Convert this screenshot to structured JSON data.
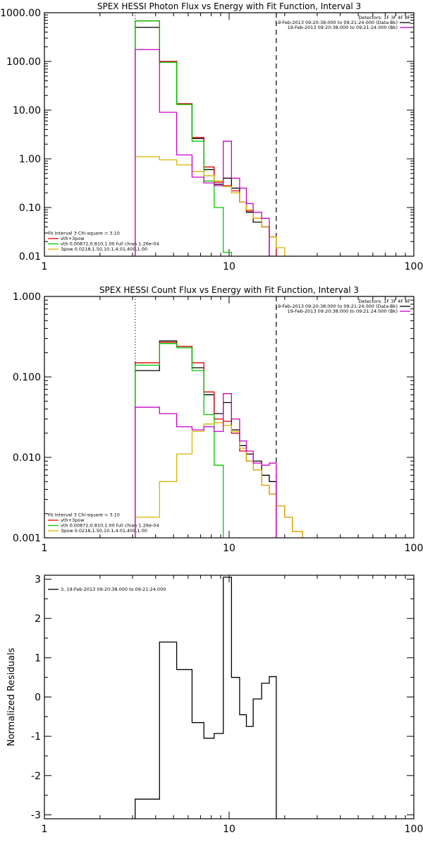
{
  "chart_data": [
    {
      "type": "line",
      "title": "SPEX HESSI Photon Flux vs Energy with Fit Function, Interval 3",
      "xlabel": "",
      "ylabel": "",
      "xscale": "log",
      "yscale": "log",
      "xlim": [
        1,
        100
      ],
      "ylim": [
        0.01,
        1000
      ],
      "x_ticks": [
        "1",
        "10",
        "100"
      ],
      "y_ticks": [
        "0.01",
        "0.10",
        "1.00",
        "10.00",
        "100.00",
        "1000.00"
      ],
      "legend_right": {
        "placement": "top-right",
        "lines": [
          {
            "text": "Detectors: 1F 3F 4F 8F",
            "color": null
          },
          {
            "text": "19-Feb-2013 09:20:38.000 to 09:21:24.000 (Data-Bk)",
            "color": "#000000"
          },
          {
            "text": "19-Feb-2013 09:20:38.000 to 09:21:24.000 (Bk)",
            "color": "#c800c8"
          }
        ]
      },
      "legend_left": {
        "placement": "bottom-left",
        "lines": [
          {
            "text": "Fit Interval  3    Chi-square = 3.10",
            "color": null
          },
          {
            "text": "vth+3pow",
            "color": "#e00000"
          },
          {
            "text": "vth 0.00872,0.810,1.00   full chian 1.26e-04",
            "color": "#00c800"
          },
          {
            "text": "3pow 0.0218,1.50,10.1,4.01,400,1.00",
            "color": "#d8b400"
          }
        ]
      },
      "vlines": [
        {
          "x": 3.1,
          "style": "dotted"
        },
        {
          "x": 18.0,
          "style": "dashed"
        }
      ],
      "x_edges": [
        3.1,
        4.2,
        5.2,
        6.3,
        7.3,
        8.3,
        9.3,
        10.3,
        11.4,
        12.4,
        13.5,
        15.0,
        16.5,
        18.0,
        20.0,
        22.0
      ],
      "series": [
        {
          "name": "Data-Bk",
          "color": "#000000",
          "values": [
            500,
            100,
            13.5,
            2.6,
            0.6,
            0.3,
            0.4,
            0.25,
            0.13,
            0.08,
            0.05,
            0.04
          ]
        },
        {
          "name": "vth+3pow",
          "color": "#e00000",
          "values": [
            680,
            100,
            13.5,
            2.75,
            0.68,
            0.33,
            0.28,
            0.22,
            0.13,
            0.085,
            0.06,
            0.04,
            0.025
          ]
        },
        {
          "name": "vth",
          "color": "#00c800",
          "values": [
            680,
            95,
            13.0,
            2.3,
            0.35,
            0.1,
            0.012,
            0.001
          ]
        },
        {
          "name": "3pow",
          "color": "#d8b400",
          "values": [
            1.1,
            0.95,
            0.75,
            0.55,
            0.45,
            0.35,
            0.27,
            0.2,
            0.13,
            0.09,
            0.06,
            0.04,
            0.025,
            0.015,
            0.01
          ]
        },
        {
          "name": "Bk",
          "color": "#c800c8",
          "values": [
            175,
            9,
            1.2,
            0.42,
            0.32,
            0.28,
            2.3,
            0.4,
            0.25,
            0.12,
            0.08,
            0.06,
            0.01
          ]
        }
      ]
    },
    {
      "type": "line",
      "title": "SPEX HESSI Count Flux vs Energy with Fit Function, Interval 3",
      "xlabel": "",
      "ylabel": "",
      "xscale": "log",
      "yscale": "log",
      "xlim": [
        1,
        100
      ],
      "ylim": [
        0.001,
        1
      ],
      "x_ticks": [
        "1",
        "10",
        "100"
      ],
      "y_ticks": [
        "0.001",
        "0.010",
        "0.100",
        "1.000"
      ],
      "legend_right": {
        "placement": "top-right",
        "lines": [
          {
            "text": "Detectors: 1F 3F 4F 8F",
            "color": null
          },
          {
            "text": "19-Feb-2013 09:20:38.000 to 09:21:24.000 (Data-Bk)",
            "color": "#000000"
          },
          {
            "text": "19-Feb-2013 09:20:38.000 to 09:21:24.000 (Bk)",
            "color": "#c800c8"
          }
        ]
      },
      "legend_left": {
        "placement": "bottom-left",
        "lines": [
          {
            "text": "Fit Interval  3    Chi-square = 3.10",
            "color": null
          },
          {
            "text": "vth+3pow",
            "color": "#e00000"
          },
          {
            "text": "vth 0.00872,0.810,1.00   full chian 1.26e-04",
            "color": "#00c800"
          },
          {
            "text": "3pow 0.0218,1.50,10.1,4.01,400,1.00",
            "color": "#d8b400"
          }
        ]
      },
      "vlines": [
        {
          "x": 3.1,
          "style": "dotted"
        },
        {
          "x": 18.0,
          "style": "dashed"
        }
      ],
      "x_edges": [
        3.1,
        4.2,
        5.2,
        6.3,
        7.3,
        8.3,
        9.3,
        10.3,
        11.4,
        12.4,
        13.5,
        15.0,
        16.5,
        18.0,
        20.0,
        22.0,
        25.0
      ],
      "series": [
        {
          "name": "Data-Bk",
          "color": "#000000",
          "values": [
            0.12,
            0.28,
            0.24,
            0.13,
            0.06,
            0.035,
            0.048,
            0.022,
            0.014,
            0.011,
            0.009,
            0.006,
            0.005
          ]
        },
        {
          "name": "vth+3pow",
          "color": "#e00000",
          "values": [
            0.15,
            0.27,
            0.24,
            0.15,
            0.065,
            0.03,
            0.028,
            0.02,
            0.012,
            0.009,
            0.007,
            0.0045,
            0.0035,
            0.0025,
            0.0018,
            0.0012
          ]
        },
        {
          "name": "vth",
          "color": "#00c800",
          "values": [
            0.14,
            0.26,
            0.23,
            0.12,
            0.034,
            0.008,
            0.0009
          ]
        },
        {
          "name": "3pow",
          "color": "#d8b400",
          "values": [
            0.0018,
            0.005,
            0.011,
            0.021,
            0.026,
            0.027,
            0.025,
            0.021,
            0.013,
            0.009,
            0.007,
            0.0045,
            0.0035,
            0.0025,
            0.0018,
            0.0012
          ]
        },
        {
          "name": "Bk",
          "color": "#c800c8",
          "values": [
            0.042,
            0.035,
            0.024,
            0.022,
            0.024,
            0.021,
            0.062,
            0.03,
            0.016,
            0.012,
            0.0085,
            0.008,
            0.0085
          ]
        }
      ]
    },
    {
      "type": "line",
      "title": "",
      "xlabel": "",
      "ylabel": "Normalized Residuals",
      "xscale": "log",
      "yscale": "linear",
      "xlim": [
        1,
        100
      ],
      "ylim": [
        -3.1,
        3.1
      ],
      "x_ticks": [
        "1",
        "10",
        "100"
      ],
      "y_ticks": [
        "-3",
        "-2",
        "-1",
        "0",
        "1",
        "2",
        "3"
      ],
      "legend_left": {
        "placement": "top-left",
        "lines": [
          {
            "text": "3, 19-Feb-2013 09:20:38.000 to 09:21:24.000",
            "color": "#000000"
          }
        ]
      },
      "x_edges": [
        3.1,
        4.2,
        5.2,
        6.3,
        7.3,
        8.3,
        9.3,
        10.3,
        11.4,
        12.4,
        13.5,
        15.0,
        16.5,
        18.0
      ],
      "series": [
        {
          "name": "3, 19-Feb-2013 09:20:38.000 to 09:21:24.000",
          "color": "#000000",
          "values": [
            -2.6,
            1.4,
            0.7,
            -0.65,
            -1.05,
            -0.93,
            3.05,
            0.5,
            -0.45,
            -0.75,
            -0.05,
            0.35,
            0.52
          ]
        }
      ]
    }
  ]
}
